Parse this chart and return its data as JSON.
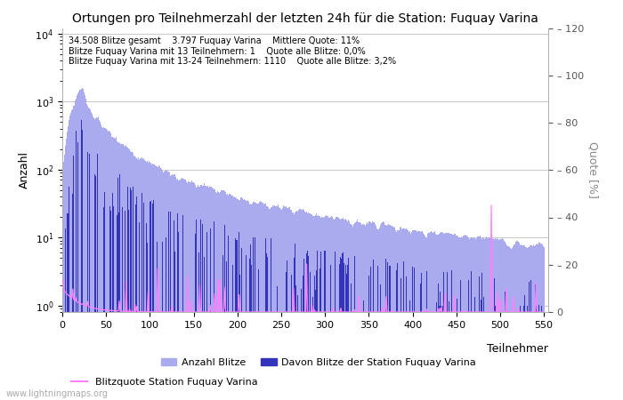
{
  "title": "Ortungen pro Teilnehmerzahl der letzten 24h für die Station: Fuquay Varina",
  "xlabel": "Teilnehmer",
  "ylabel_left": "Anzahl",
  "ylabel_right": "Quote [%]",
  "annotation_lines": [
    "34.508 Blitze gesamt    3.797 Fuquay Varina    Mittlere Quote: 11%",
    "Blitze Fuquay Varina mit 13 Teilnehmern: 1    Quote alle Blitze: 0,0%",
    "Blitze Fuquay Varina mit 13-24 Teilnehmern: 1110    Quote alle Blitze: 3,2%"
  ],
  "legend_label_anzahl": "Anzahl Blitze",
  "legend_label_station": "Davon Blitze der Station Fuquay Varina",
  "legend_label_quote": "Blitzquote Station Fuquay Varina",
  "xlim": [
    0,
    555
  ],
  "xticks": [
    0,
    50,
    100,
    150,
    200,
    250,
    300,
    350,
    400,
    450,
    500,
    550
  ],
  "ylim_right": [
    0,
    120
  ],
  "right_yticks": [
    0,
    20,
    40,
    60,
    80,
    100,
    120
  ],
  "bar_color_light": "#aaaaee",
  "bar_color_dark": "#3333bb",
  "line_color": "#ff80ff",
  "grid_color": "#c8c8c8",
  "watermark": "www.lightningmaps.org",
  "fig_bg": "#ffffff"
}
